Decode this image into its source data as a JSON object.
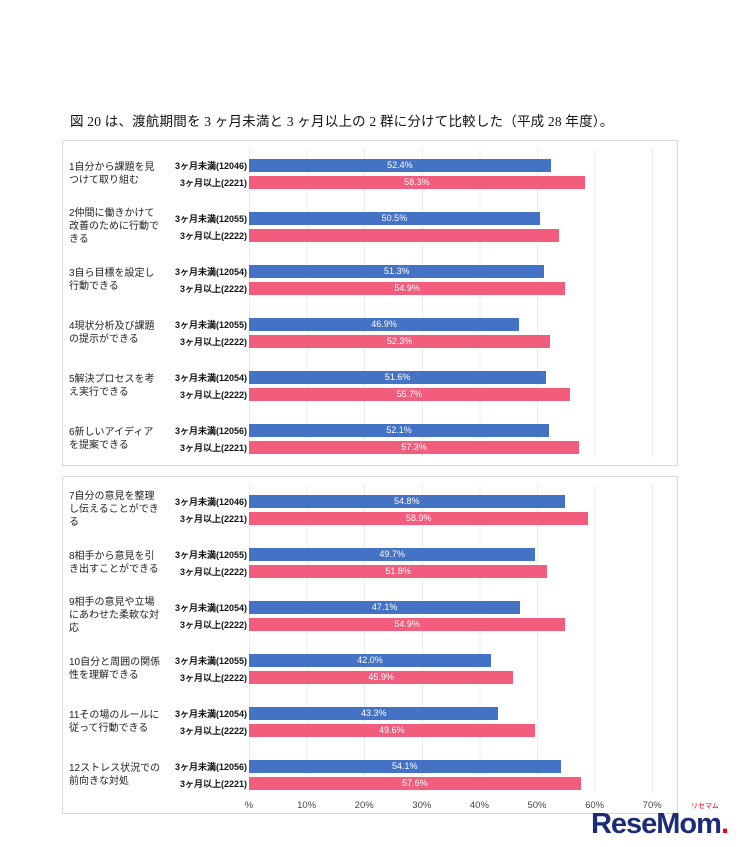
{
  "caption": "図 20 は、渡航期間を 3 ヶ月未満と 3 ヶ月以上の 2 群に分けて比較した（平成 28 年度）。",
  "logo": {
    "text": "ReseMom",
    "ruby": "リセマム",
    "period": "."
  },
  "chart_data": {
    "type": "bar",
    "orientation": "horizontal",
    "series_names": [
      "3ヶ月未満",
      "3ヶ月以上"
    ],
    "colors": {
      "series1": "#4472c4",
      "series2": "#f25d7e"
    },
    "xlim": [
      0,
      70
    ],
    "grid": true,
    "legend_position": "inline-left-of-bars",
    "x_tick_values": [
      0,
      10,
      20,
      30,
      40,
      50,
      60,
      70
    ],
    "x_tick_labels": [
      "%",
      "10%",
      "20%",
      "30%",
      "40%",
      "50%",
      "60%",
      "70%"
    ],
    "groups": [
      {
        "category": "1自分から課題を見つけて取り組む",
        "label1": "3ヶ月未満(12046)",
        "label2": "3ヶ月以上(2221)",
        "value1": 52.4,
        "value2": 58.3,
        "display1": "52.4%",
        "display2": "58.3%"
      },
      {
        "category": "2仲間に働きかけて改善のために行動できる",
        "label1": "3ヶ月未満(12055)",
        "label2": "3ヶ月以上(2222)",
        "value1": 50.5,
        "value2": 53.8,
        "display1": "50.5%",
        "display2": ""
      },
      {
        "category": "3自ら目標を設定し行動できる",
        "label1": "3ヶ月未満(12054)",
        "label2": "3ヶ月以上(2222)",
        "value1": 51.3,
        "value2": 54.9,
        "display1": "51.3%",
        "display2": "54.9%"
      },
      {
        "category": "4現状分析及び課題の提示ができる",
        "label1": "3ヶ月未満(12055)",
        "label2": "3ヶ月以上(2222)",
        "value1": 46.9,
        "value2": 52.3,
        "display1": "46.9%",
        "display2": "52.3%"
      },
      {
        "category": "5解決プロセスを考え実行できる",
        "label1": "3ヶ月未満(12054)",
        "label2": "3ヶ月以上(2222)",
        "value1": 51.6,
        "value2": 55.7,
        "display1": "51.6%",
        "display2": "55.7%"
      },
      {
        "category": "6新しいアイディアを提案できる",
        "label1": "3ヶ月未満(12056)",
        "label2": "3ヶ月以上(2221)",
        "value1": 52.1,
        "value2": 57.3,
        "display1": "52.1%",
        "display2": "57.3%"
      },
      {
        "category": "7自分の意見を整理し伝えることができる",
        "label1": "3ヶ月未満(12046)",
        "label2": "3ヶ月以上(2221)",
        "value1": 54.8,
        "value2": 58.9,
        "display1": "54.8%",
        "display2": "58.9%"
      },
      {
        "category": "8相手から意見を引き出すことができる",
        "label1": "3ヶ月未満(12055)",
        "label2": "3ヶ月以上(2222)",
        "value1": 49.7,
        "value2": 51.8,
        "display1": "49.7%",
        "display2": "51.8%"
      },
      {
        "category": "9相手の意見や立場にあわせた柔軟な対応",
        "label1": "3ヶ月未満(12054)",
        "label2": "3ヶ月以上(2222)",
        "value1": 47.1,
        "value2": 54.9,
        "display1": "47.1%",
        "display2": "54.9%"
      },
      {
        "category": "10自分と周囲の関係性を理解できる",
        "label1": "3ヶ月未満(12055)",
        "label2": "3ヶ月以上(2222)",
        "value1": 42.0,
        "value2": 45.9,
        "display1": "42.0%",
        "display2": "45.9%"
      },
      {
        "category": "11その場のルールに従って行動できる",
        "label1": "3ヶ月未満(12054)",
        "label2": "3ヶ月以上(2222)",
        "value1": 43.3,
        "value2": 49.6,
        "display1": "43.3%",
        "display2": "49.6%"
      },
      {
        "category": "12ストレス状況での前向きな対処",
        "label1": "3ヶ月未満(12056)",
        "label2": "3ヶ月以上(2221)",
        "value1": 54.1,
        "value2": 57.6,
        "display1": "54.1%",
        "display2": "57.6%"
      }
    ]
  }
}
